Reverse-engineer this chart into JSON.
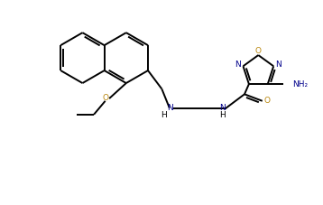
{
  "bg_color": "#ffffff",
  "bond_color": "#000000",
  "oxygen_color": "#b8860b",
  "nitrogen_color": "#00008b",
  "lw": 1.4,
  "figsize": [
    3.58,
    2.27
  ],
  "dpi": 100,
  "xlim": [
    0,
    9.5
  ],
  "ylim": [
    0,
    6.5
  ]
}
